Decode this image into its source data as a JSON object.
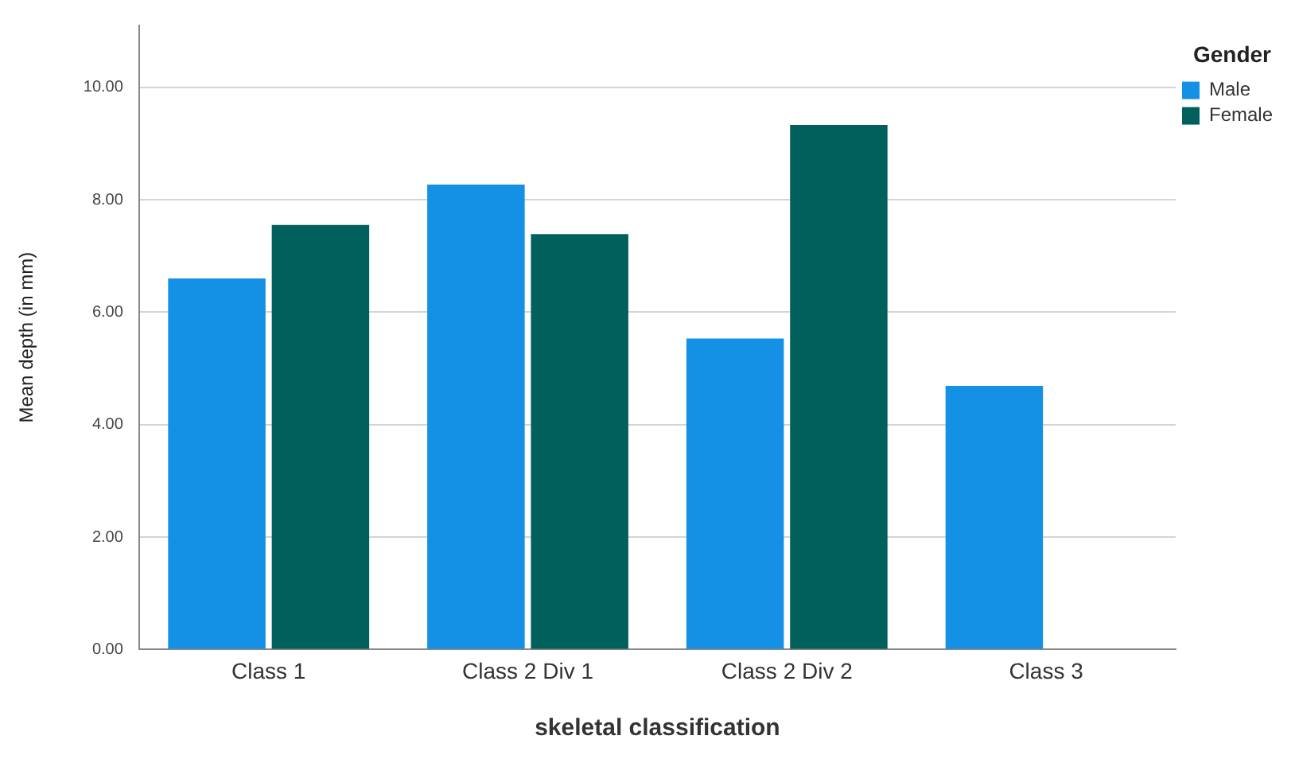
{
  "chart_data": {
    "type": "bar",
    "categories": [
      "Class 1",
      "Class 2 Div 1",
      "Class 2 Div 2",
      "Class 3"
    ],
    "series": [
      {
        "name": "Male",
        "color": "#1490e4",
        "values": [
          6.6,
          8.27,
          5.53,
          4.69
        ]
      },
      {
        "name": "Female",
        "color": "#02605c",
        "values": [
          7.55,
          7.39,
          9.33,
          null
        ]
      }
    ],
    "xlabel": "skeletal classification",
    "ylabel": "Mean depth (in mm)",
    "legend_title": "Gender",
    "ylim": [
      0,
      11.1
    ],
    "yticks": [
      {
        "value": 0,
        "label": "0.00"
      },
      {
        "value": 2,
        "label": "2.00"
      },
      {
        "value": 4,
        "label": "4.00"
      },
      {
        "value": 6,
        "label": "6.00"
      },
      {
        "value": 8,
        "label": "8.00"
      },
      {
        "value": 10,
        "label": "10.00"
      }
    ],
    "grid": "y",
    "legend": "top right"
  }
}
